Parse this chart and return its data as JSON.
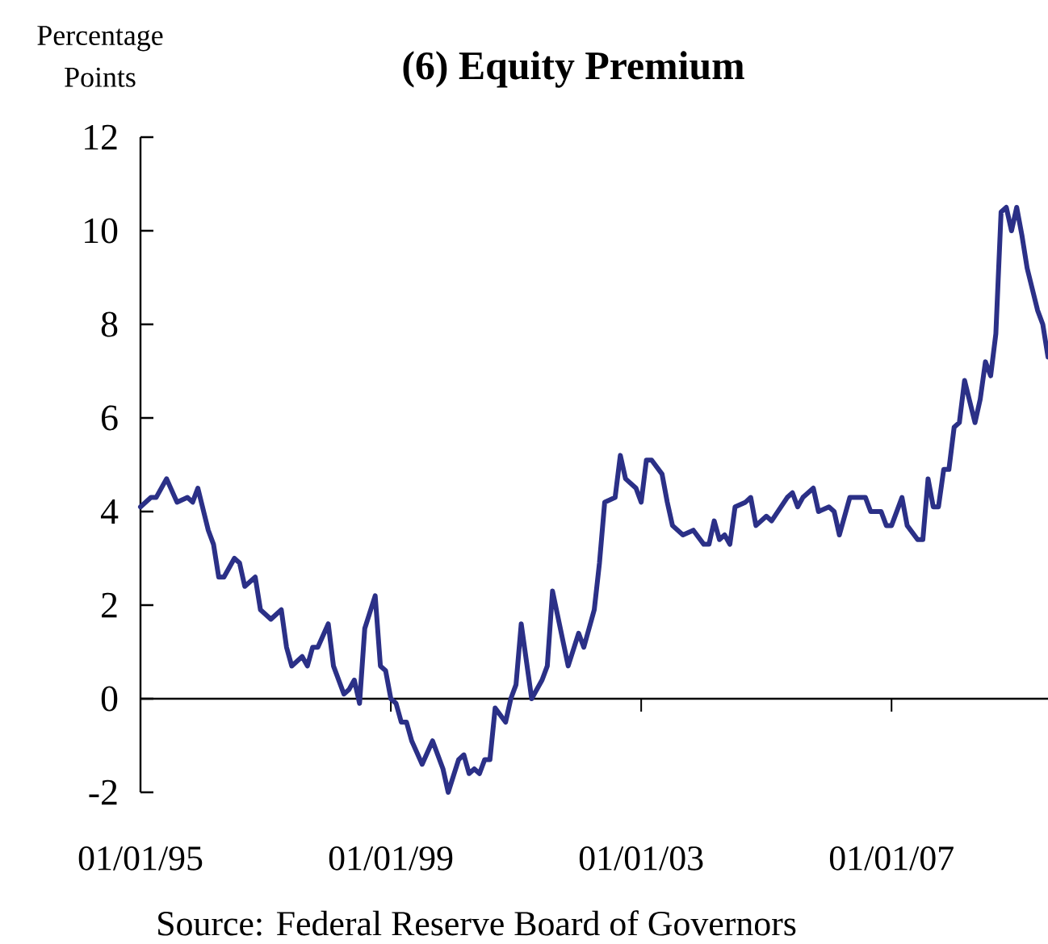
{
  "chart_data": {
    "type": "line",
    "title": "(6) Equity Premium",
    "ylabel": "Percentage Points",
    "annotations": [
      "Source: Federal Reserve Board of Governors"
    ],
    "x": [
      "1995-01",
      "1995-03",
      "1995-04",
      "1995-06",
      "1995-08",
      "1995-10",
      "1995-11",
      "1995-12",
      "1996-02",
      "1996-03",
      "1996-04",
      "1996-05",
      "1996-07",
      "1996-08",
      "1996-09",
      "1996-11",
      "1996-12",
      "1997-02",
      "1997-04",
      "1997-05",
      "1997-06",
      "1997-08",
      "1997-09",
      "1997-10",
      "1997-11",
      "1998-01",
      "1998-02",
      "1998-04",
      "1998-05",
      "1998-06",
      "1998-07",
      "1998-08",
      "1998-10",
      "1998-11",
      "1998-12",
      "1999-01",
      "1999-02",
      "1999-03",
      "1999-04",
      "1999-05",
      "1999-07",
      "1999-09",
      "1999-11",
      "1999-12",
      "2000-02",
      "2000-03",
      "2000-04",
      "2000-05",
      "2000-06",
      "2000-07",
      "2000-08",
      "2000-09",
      "2000-11",
      "2000-12",
      "2001-01",
      "2001-02",
      "2001-04",
      "2001-06",
      "2001-07",
      "2001-08",
      "2001-11",
      "2002-01",
      "2002-02",
      "2002-04",
      "2002-05",
      "2002-06",
      "2002-08",
      "2002-09",
      "2002-10",
      "2002-12",
      "2003-01",
      "2003-02",
      "2003-03",
      "2003-05",
      "2003-06",
      "2003-07",
      "2003-09",
      "2003-11",
      "2004-01",
      "2004-02",
      "2004-03",
      "2004-04",
      "2004-05",
      "2004-06",
      "2004-07",
      "2004-09",
      "2004-10",
      "2004-11",
      "2005-01",
      "2005-02",
      "2005-05",
      "2005-06",
      "2005-07",
      "2005-08",
      "2005-10",
      "2005-11",
      "2006-01",
      "2006-02",
      "2006-03",
      "2006-05",
      "2006-08",
      "2006-09",
      "2006-11",
      "2006-12",
      "2007-01",
      "2007-03",
      "2007-04",
      "2007-06",
      "2007-07",
      "2007-08",
      "2007-09",
      "2007-10",
      "2007-11",
      "2007-12",
      "2008-01",
      "2008-02",
      "2008-03",
      "2008-05",
      "2008-06",
      "2008-07",
      "2008-08",
      "2008-09",
      "2008-10",
      "2008-11",
      "2008-12",
      "2009-01",
      "2009-02",
      "2009-03",
      "2009-05",
      "2009-06",
      "2009-07"
    ],
    "series": [
      {
        "color": "#2b3087",
        "values": [
          4.1,
          4.3,
          4.3,
          4.7,
          4.2,
          4.3,
          4.2,
          4.5,
          3.6,
          3.3,
          2.6,
          2.6,
          3.0,
          2.9,
          2.4,
          2.6,
          1.9,
          1.7,
          1.9,
          1.1,
          0.7,
          0.9,
          0.7,
          1.1,
          1.1,
          1.6,
          0.7,
          0.1,
          0.2,
          0.4,
          -0.1,
          1.5,
          2.2,
          0.7,
          0.6,
          0.0,
          -0.1,
          -0.5,
          -0.5,
          -0.9,
          -1.4,
          -0.9,
          -1.5,
          -2.0,
          -1.3,
          -1.2,
          -1.6,
          -1.5,
          -1.6,
          -1.3,
          -1.3,
          -0.2,
          -0.5,
          0.0,
          0.3,
          1.6,
          0.0,
          0.4,
          0.7,
          2.3,
          0.7,
          1.4,
          1.1,
          1.9,
          2.9,
          4.2,
          4.3,
          5.2,
          4.7,
          4.5,
          4.2,
          5.1,
          5.1,
          4.8,
          4.2,
          3.7,
          3.5,
          3.6,
          3.3,
          3.3,
          3.8,
          3.4,
          3.5,
          3.3,
          4.1,
          4.2,
          4.3,
          3.7,
          3.9,
          3.8,
          4.3,
          4.4,
          4.1,
          4.3,
          4.5,
          4.0,
          4.1,
          4.0,
          3.5,
          4.3,
          4.3,
          4.0,
          4.0,
          3.7,
          3.7,
          4.3,
          3.7,
          3.4,
          3.4,
          4.7,
          4.1,
          4.1,
          4.9,
          4.9,
          5.8,
          5.9,
          6.8,
          5.9,
          6.4,
          7.2,
          6.9,
          7.8,
          10.4,
          10.5,
          10.0,
          10.5,
          9.9,
          9.2,
          8.3,
          8.0,
          7.3
        ]
      }
    ],
    "xlim": [
      "1995-01",
      "2009-07"
    ],
    "xticks": [
      {
        "value": "1995-01-01",
        "label": "01/01/95"
      },
      {
        "value": "1999-01-01",
        "label": "01/01/99"
      },
      {
        "value": "2003-01-01",
        "label": "01/01/03"
      },
      {
        "value": "2007-01-01",
        "label": "01/01/07"
      }
    ],
    "ylim": [
      -2,
      12
    ],
    "yticks": [
      -2,
      0,
      2,
      4,
      6,
      8,
      10,
      12
    ],
    "marker": "none",
    "line_style": "solid"
  }
}
